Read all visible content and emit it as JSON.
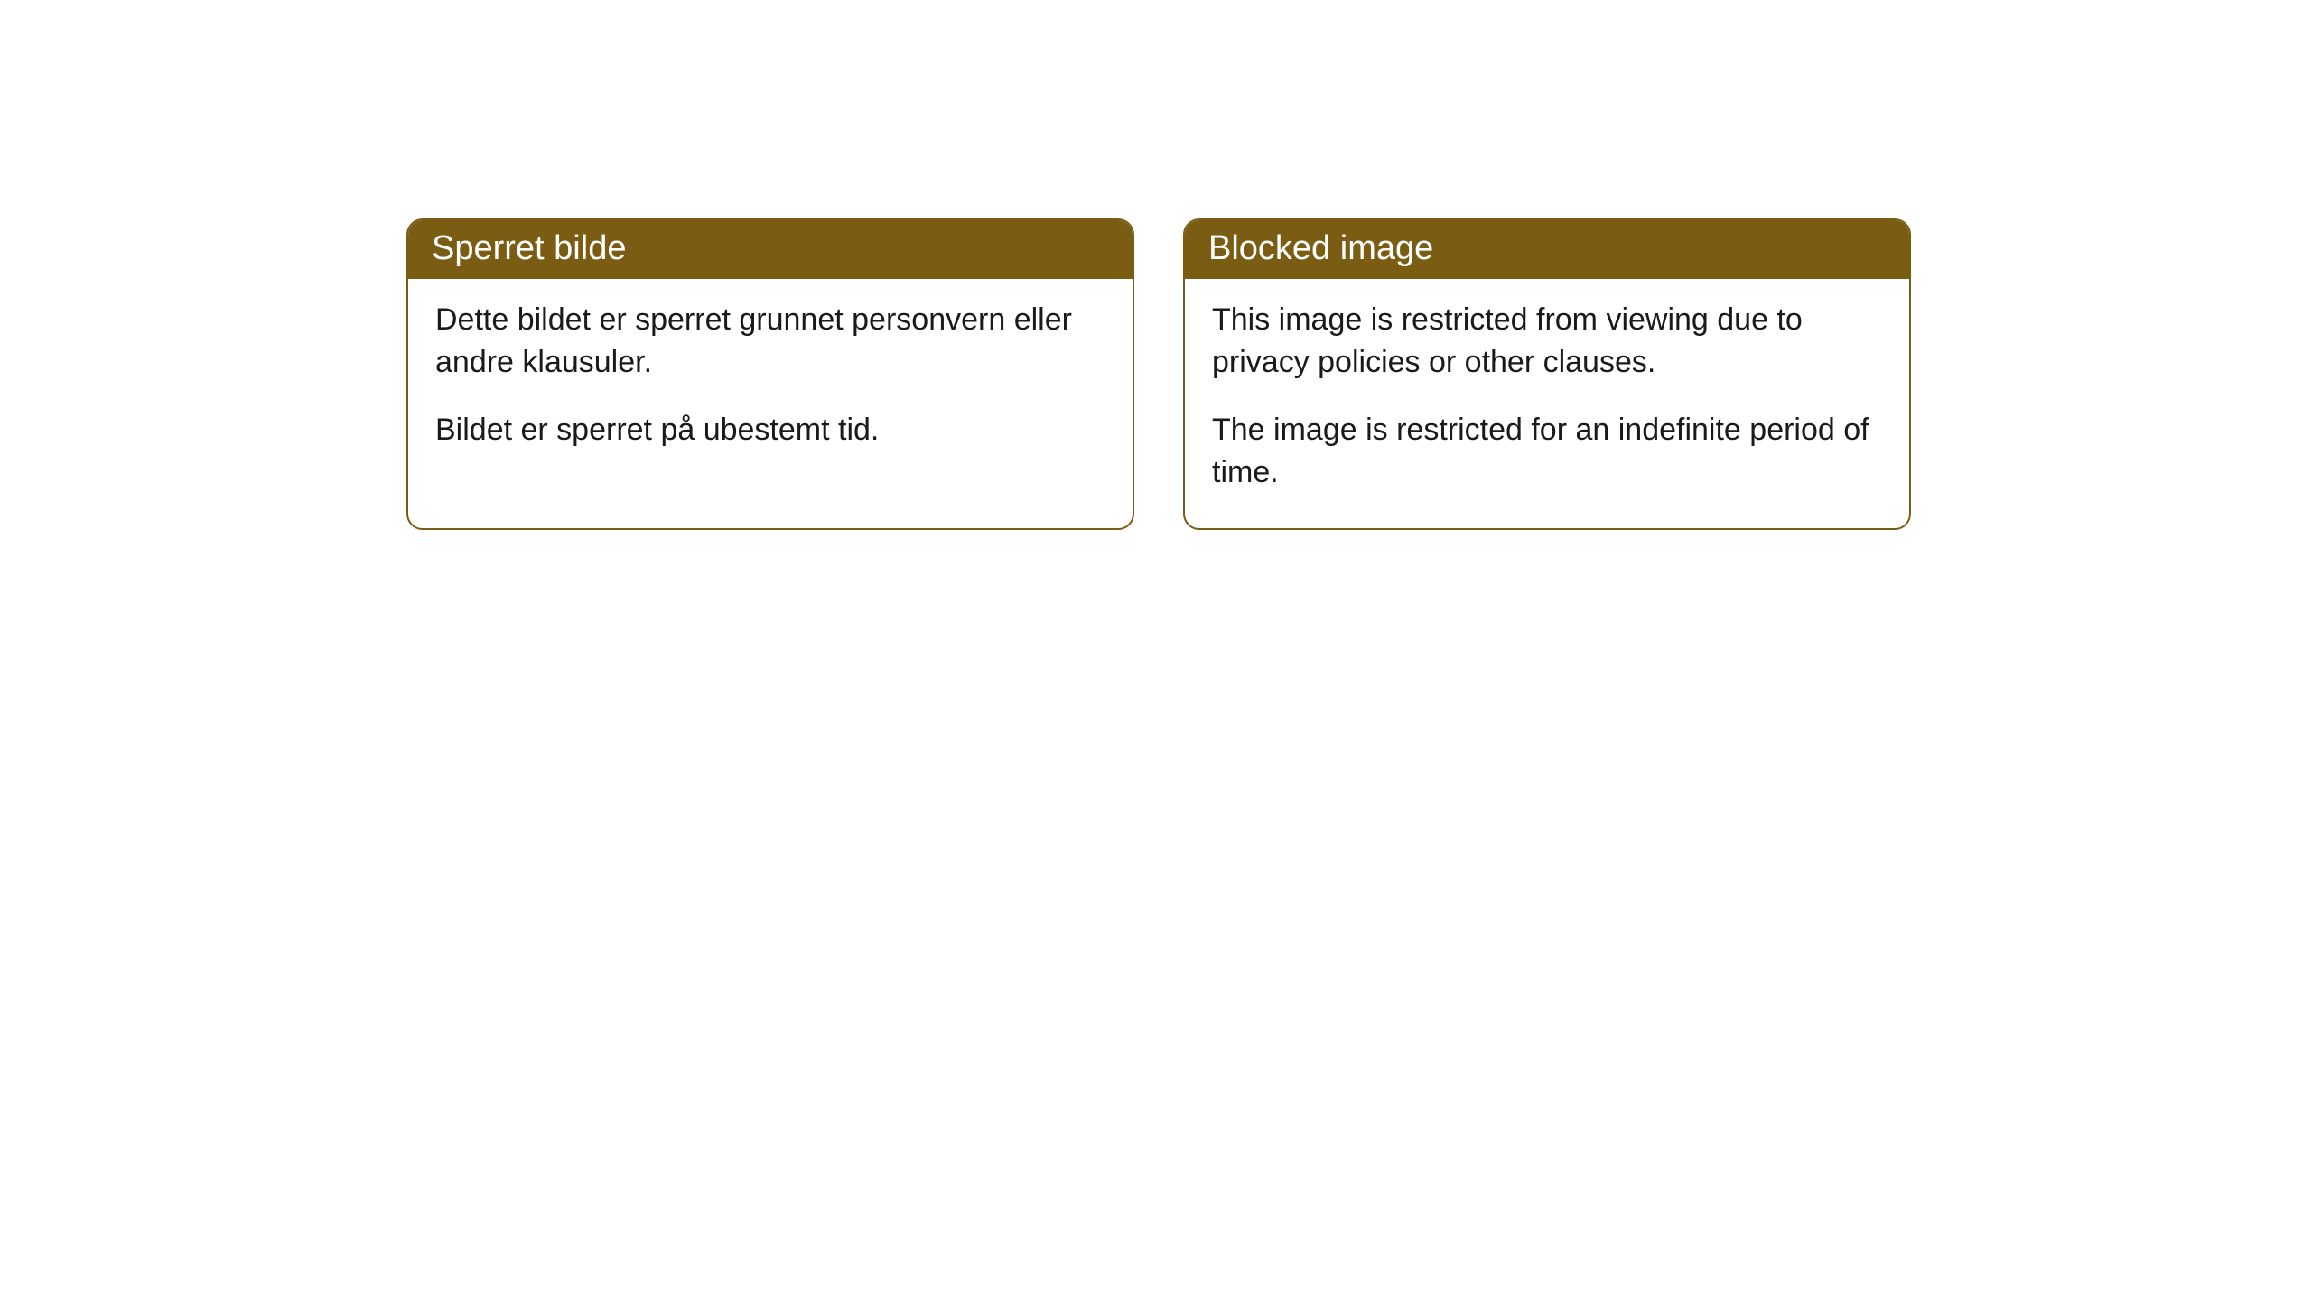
{
  "cards": [
    {
      "header": "Sperret bilde",
      "para1": "Dette bildet er sperret grunnet personvern eller andre klausuler.",
      "para2": "Bildet er sperret på ubestemt tid."
    },
    {
      "header": "Blocked image",
      "para1": "This image is restricted from viewing due to privacy policies or other clauses.",
      "para2": "The image is restricted for an indefinite period of time."
    }
  ],
  "style": {
    "header_bg_color": "#7b5c13",
    "header_text_color": "#ffffff",
    "border_color": "#7b5c13",
    "body_text_color": "#1a1a1a",
    "background_color": "#ffffff",
    "border_radius": 18,
    "header_fontsize": 38,
    "body_fontsize": 34
  }
}
